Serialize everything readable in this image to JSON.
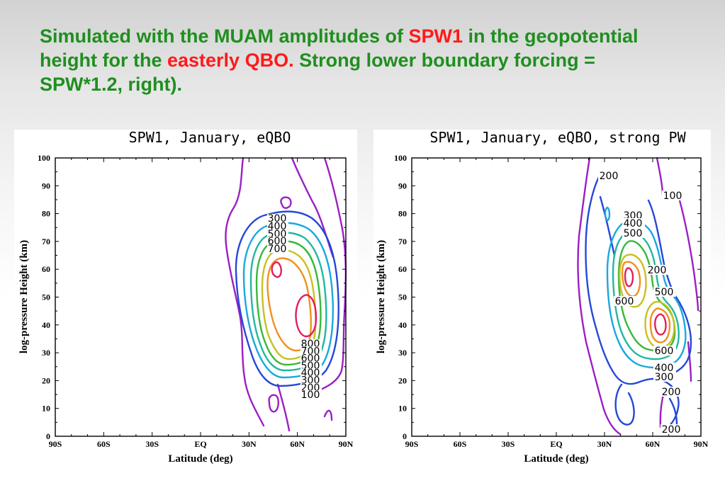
{
  "title": {
    "p1": "Simulated with the MUAM amplitudes of ",
    "h1": "SPW1",
    "p2": " in the geopotential height for the ",
    "h2": "easterly QBO.",
    "p3": " Strong lower boundary forcing = SPW*1.2, right)."
  },
  "colors": {
    "title": "#1f8f1f",
    "highlight": "#ff1a1a"
  },
  "chart_data": [
    {
      "type": "contour",
      "title": "SPW1, January, eQBO",
      "xlabel": "Latitude (deg)",
      "ylabel": "log-pressure Height (km)",
      "x_ticks": [
        "90S",
        "60S",
        "30S",
        "EQ",
        "30N",
        "60N",
        "90N"
      ],
      "y_ticks": [
        "0",
        "10",
        "20",
        "30",
        "40",
        "50",
        "60",
        "70",
        "80",
        "90",
        "100"
      ],
      "xlim": [
        -90,
        90
      ],
      "ylim": [
        0,
        100
      ],
      "grid": false,
      "contour_levels": [
        100,
        200,
        300,
        400,
        500,
        600,
        700,
        800
      ],
      "contour_colors": [
        "#9b1fc4",
        "#2448d8",
        "#18a8e0",
        "#20b8a0",
        "#38b838",
        "#c8c020",
        "#f09020",
        "#e02060"
      ],
      "upper_labels": [
        "300",
        "400",
        "500",
        "600",
        "700"
      ],
      "lower_labels": [
        "800",
        "700",
        "600",
        "500",
        "400",
        "300",
        "200",
        "100"
      ]
    },
    {
      "type": "contour",
      "title": "SPW1, January, eQBO, strong PW",
      "xlabel": "Latitude (deg)",
      "ylabel": "log-pressure Height (km)",
      "x_ticks": [
        "90S",
        "60S",
        "30S",
        "EQ",
        "30N",
        "60N",
        "90N"
      ],
      "y_ticks": [
        "0",
        "10",
        "20",
        "30",
        "40",
        "50",
        "60",
        "70",
        "80",
        "90",
        "100"
      ],
      "xlim": [
        -90,
        90
      ],
      "ylim": [
        0,
        100
      ],
      "grid": false,
      "contour_levels": [
        100,
        200,
        300,
        400,
        500,
        600,
        700,
        800
      ],
      "contour_colors": [
        "#9b1fc4",
        "#2448d8",
        "#18a8e0",
        "#20b8a0",
        "#38b838",
        "#c8c020",
        "#f09020",
        "#e02060"
      ],
      "labels": [
        "200",
        "100",
        "300",
        "400",
        "500",
        "200",
        "500",
        "600",
        "600",
        "400",
        "300",
        "200",
        "200"
      ]
    }
  ]
}
